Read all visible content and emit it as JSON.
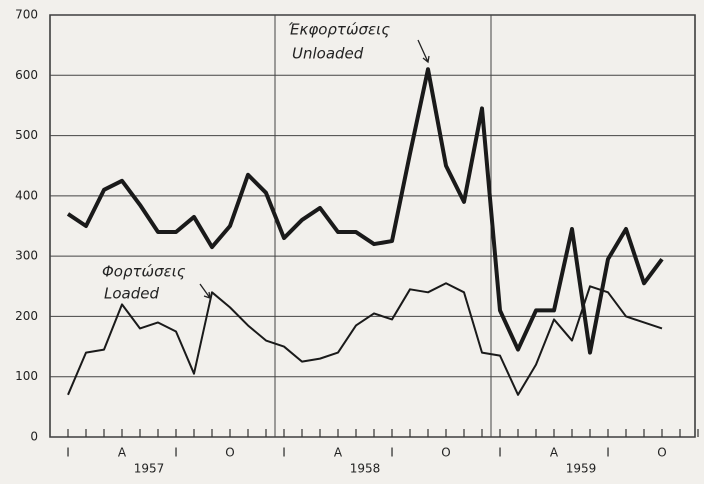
{
  "chart_data": {
    "type": "line",
    "categories": [
      "I",
      null,
      null,
      "A",
      null,
      null,
      "I",
      null,
      null,
      "O",
      null,
      null,
      "I",
      null,
      null,
      "A",
      null,
      null,
      "I",
      null,
      null,
      "O",
      null,
      null,
      "I",
      null,
      null,
      "A",
      null,
      null,
      "I",
      null,
      null,
      "O",
      null,
      null
    ],
    "years": [
      "1957",
      "1958",
      "1959"
    ],
    "series": [
      {
        "name": "Unloaded",
        "label_greek": "Έκφορτώσεις",
        "color": "#1a1a1a",
        "values": [
          370,
          350,
          410,
          425,
          385,
          340,
          340,
          365,
          315,
          350,
          435,
          405,
          330,
          360,
          380,
          340,
          340,
          320,
          325,
          470,
          610,
          450,
          390,
          545,
          210,
          145,
          210,
          210,
          345,
          140,
          295,
          345,
          255,
          295,
          null,
          null
        ]
      },
      {
        "name": "Loaded",
        "label_greek": "Φορτώσεις",
        "color": "#1a1a1a",
        "values": [
          70,
          140,
          145,
          220,
          180,
          190,
          175,
          105,
          240,
          215,
          185,
          160,
          150,
          125,
          130,
          140,
          185,
          205,
          195,
          245,
          240,
          255,
          240,
          140,
          135,
          70,
          120,
          195,
          160,
          250,
          240,
          200,
          190,
          180,
          null,
          null
        ]
      }
    ],
    "ylim": [
      0,
      700
    ],
    "yticks": [
      0,
      100,
      200,
      300,
      400,
      500,
      600,
      700
    ],
    "grid": true
  }
}
